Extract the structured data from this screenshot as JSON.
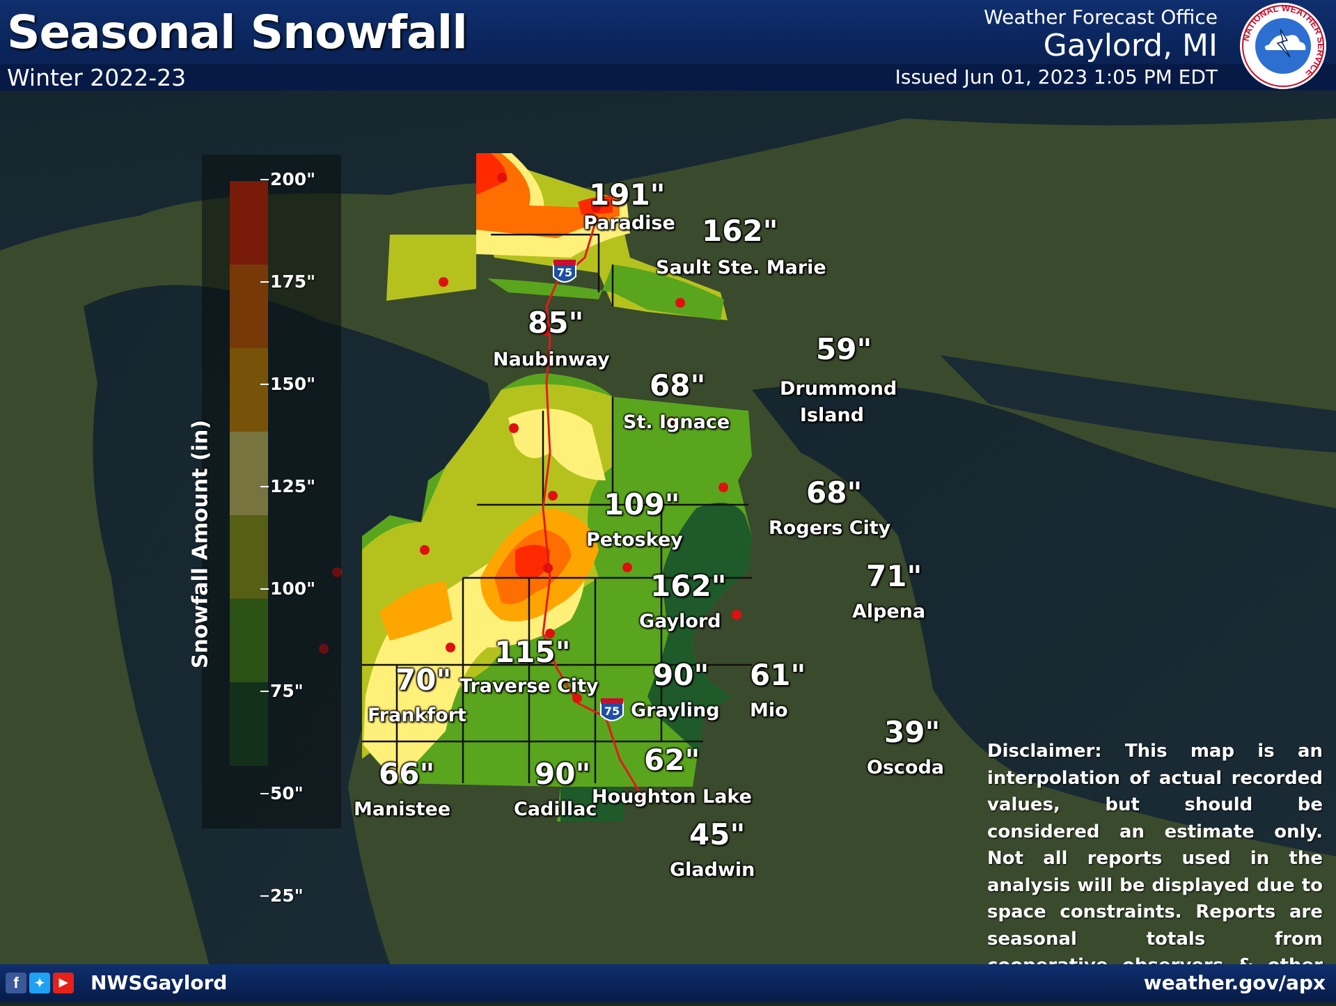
{
  "header": {
    "title": "Seasonal Snowfall",
    "subtitle": "Winter 2022-23",
    "office_label": "Weather Forecast Office",
    "office_city": "Gaylord, MI",
    "issued": "Issued Jun 01, 2023 1:05 PM EDT",
    "logo_text": "NATIONAL WEATHER SERVICE"
  },
  "legend": {
    "title": "Snowfall Amount (in)",
    "ticks": [
      "200\"",
      "175\"",
      "150\"",
      "125\"",
      "100\"",
      "75\"",
      "50\"",
      "25\""
    ],
    "colors": [
      "#ff2a00",
      "#ff6e00",
      "#ffa500",
      "#fff07a",
      "#b5c21e",
      "#5aa51e",
      "#1f5a2a"
    ]
  },
  "stations": [
    {
      "name": "Paradise",
      "value": "191\""
    },
    {
      "name": "Sault Ste. Marie",
      "value": "162\""
    },
    {
      "name": "Naubinway",
      "value": "85\""
    },
    {
      "name": "St. Ignace",
      "value": "68\""
    },
    {
      "name": "Drummond Island",
      "value": "59\""
    },
    {
      "name": "Petoskey",
      "value": "109\""
    },
    {
      "name": "Rogers City",
      "value": "68\""
    },
    {
      "name": "Gaylord",
      "value": "162\""
    },
    {
      "name": "Alpena",
      "value": "71\""
    },
    {
      "name": "Traverse City",
      "value": "115\""
    },
    {
      "name": "Frankfort",
      "value": "70\""
    },
    {
      "name": "Grayling",
      "value": "90\""
    },
    {
      "name": "Mio",
      "value": "61\""
    },
    {
      "name": "Oscoda",
      "value": "39\""
    },
    {
      "name": "Manistee",
      "value": "66\""
    },
    {
      "name": "Cadillac",
      "value": "90\""
    },
    {
      "name": "Houghton Lake",
      "value": "62\""
    },
    {
      "name": "Gladwin",
      "value": "45\""
    }
  ],
  "interstate_label": "75",
  "disclaimer": "Disclaimer: This map is an interpolation of actual recorded values, but should be considered an estimate only. Not all reports used in the analysis will be displayed due to space constraints. Reports are seasonal totals from cooperative observers & other sources.",
  "footer": {
    "handle": "NWSGaylord",
    "site": "weather.gov/apx",
    "social_icons": [
      "facebook-icon",
      "twitter-icon",
      "youtube-icon"
    ]
  }
}
